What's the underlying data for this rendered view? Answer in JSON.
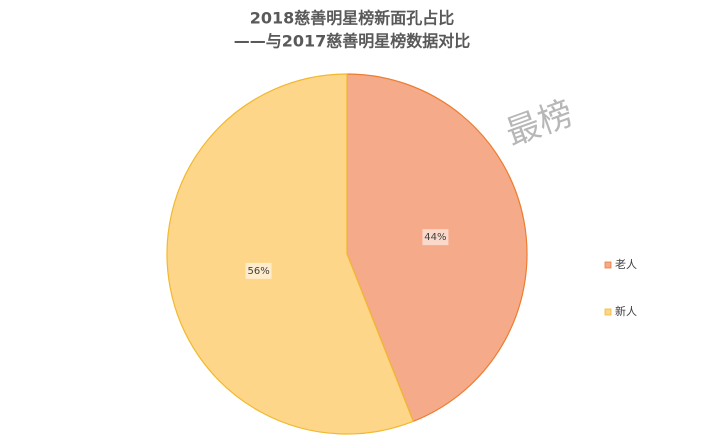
{
  "chart_data": {
    "type": "pie",
    "title": "2018慈善明星榜新面孔占比",
    "subtitle": "——与2017慈善明星榜数据对比",
    "watermark": "最榜",
    "categories": [
      "老人",
      "新人"
    ],
    "values": [
      44,
      56
    ],
    "value_labels": [
      "44%",
      "56%"
    ],
    "colors": [
      "#f5ab8a",
      "#fdd68a"
    ],
    "edge_colors": [
      "#ed7d31",
      "#f2b92e"
    ],
    "legend": "right"
  }
}
